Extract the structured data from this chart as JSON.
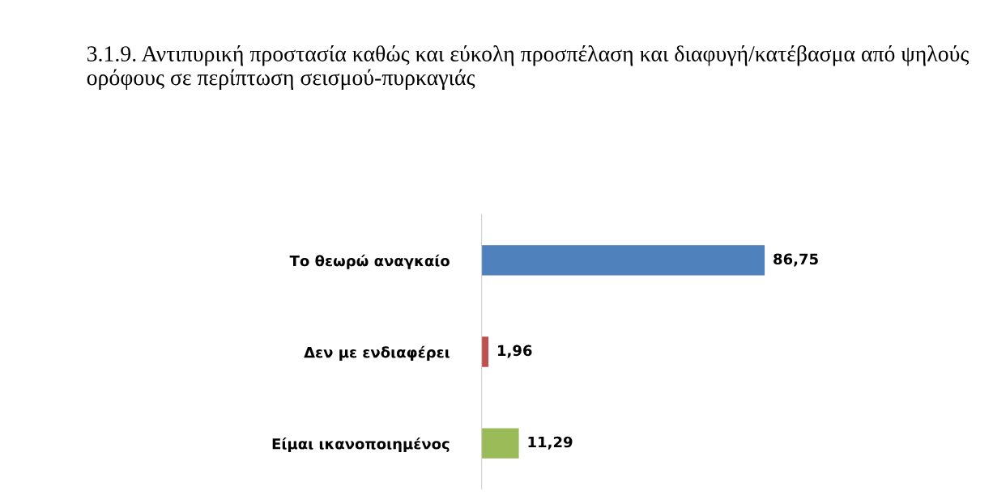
{
  "chart_data": {
    "type": "bar",
    "orientation": "horizontal",
    "title": "3.1.9. Αντιπυρική προστασία καθώς και εύκολη προσπέλαση και διαφυγή/κατέβασμα από ψηλούς ορόφους σε περίπτωση σεισμού-πυρκαγιάς",
    "categories": [
      "Το θεωρώ αναγκαίο",
      "Δεν με ενδιαφέρει",
      "Είμαι ικανοποιημένος"
    ],
    "values": [
      86.75,
      1.96,
      11.29
    ],
    "value_labels": [
      "86,75",
      "1,96",
      "11,29"
    ],
    "colors": [
      "#4f81bd",
      "#c0504d",
      "#9bbb59"
    ],
    "grid": false,
    "legend": false
  }
}
